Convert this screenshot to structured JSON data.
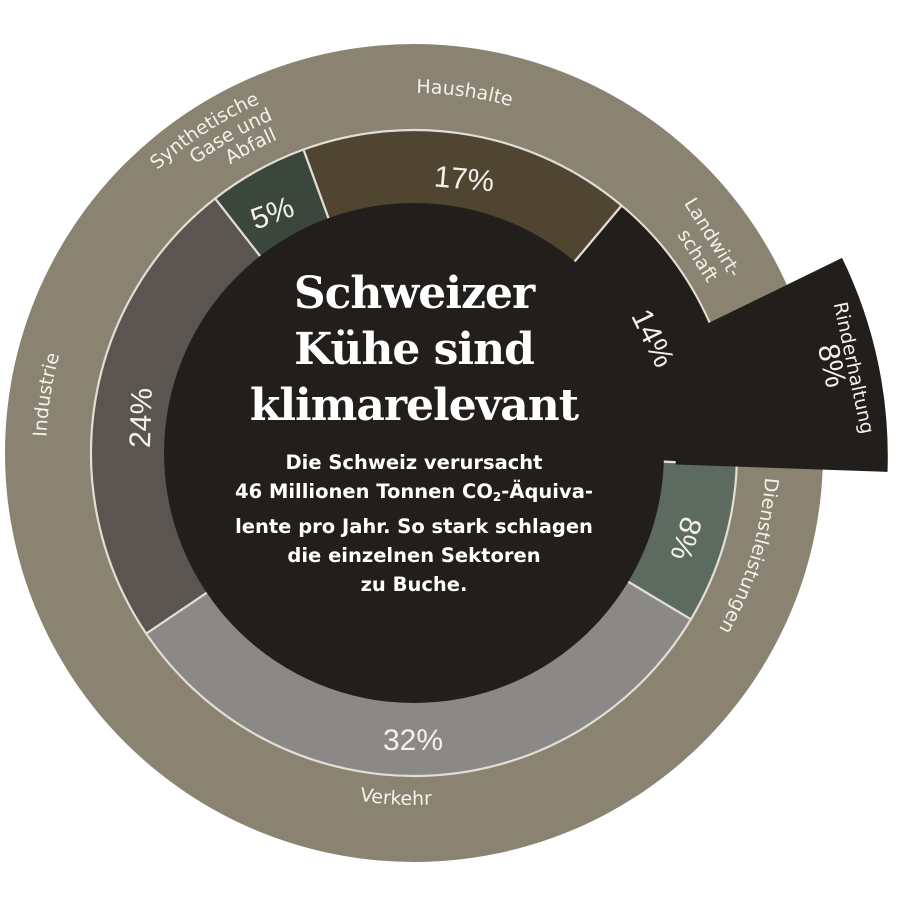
{
  "chart_data": {
    "type": "pie",
    "title": "Schweizer Kühe sind klimarelevant",
    "subtitle": "Die Schweiz verursacht 46 Millionen Tonnen CO₂-Äquivalente pro Jahr. So stark schlagen die einzelnen Sektoren zu Buche.",
    "unit": "% of CO2-equivalent emissions",
    "total": "46 Millionen Tonnen CO2-Äquivalente pro Jahr",
    "categories": [
      "Industrie",
      "Synthetische Gase und Abfall",
      "Haushalte",
      "Landwirtschaft",
      "Dienstleistungen",
      "Verkehr"
    ],
    "values": [
      24,
      5,
      17,
      14,
      8,
      32
    ],
    "sub_slices": [
      {
        "parent": "Landwirtschaft",
        "name": "Rinderhaltung",
        "value": 8,
        "exploded": true
      }
    ],
    "legend_position": "labels on outer ring"
  },
  "header": {
    "title_lines": [
      "Schweizer",
      "Kühe sind",
      "klimarelevant"
    ],
    "subtitle_lines": [
      "Die Schweiz verursacht",
      "46 Millionen Tonnen CO",
      "-Äquiva-",
      "lente pro Jahr. So stark schlagen",
      "die einzelnen Sektoren",
      "zu Buche."
    ],
    "subscript": "2"
  },
  "segments": [
    {
      "key": "industrie",
      "label": "Industrie",
      "pct_label": "24%",
      "value": 24,
      "color": "#5a5550",
      "start": 236,
      "end": 322
    },
    {
      "key": "synthetische-gase",
      "label_lines": [
        "Synthetische",
        "Gase und",
        "Abfall"
      ],
      "pct_label": "5%",
      "value": 5,
      "color": "#3b463d",
      "start": 322,
      "end": 340
    },
    {
      "key": "haushalte",
      "label": "Haushalte",
      "pct_label": "17%",
      "value": 17,
      "color": "#4f4530",
      "start": 340,
      "end": 400
    },
    {
      "key": "landwirtschaft",
      "label_lines": [
        "Landwirt-",
        "schaft"
      ],
      "pct_label": "14%",
      "value": 14,
      "color": "#221e1b",
      "start": 40,
      "end": 92
    },
    {
      "key": "dienstleistungen",
      "label": "Dienstleistungen",
      "pct_label": "8%",
      "value": 8,
      "color": "#5c6a60",
      "start": 92,
      "end": 121
    },
    {
      "key": "verkehr",
      "label": "Verkehr",
      "pct_label": "32%",
      "value": 32,
      "color": "#8b8987",
      "start": 121,
      "end": 236
    }
  ],
  "rinderhaltung": {
    "label": "Rinderhaltung",
    "pct_label": "8%",
    "value": 8,
    "color": "#221e1b",
    "start": 64,
    "end": 92
  },
  "colors": {
    "outer_ring": "#8a8372",
    "center": "#221e1b",
    "divider": "#e2ded5",
    "text": "#f4f1ea"
  }
}
